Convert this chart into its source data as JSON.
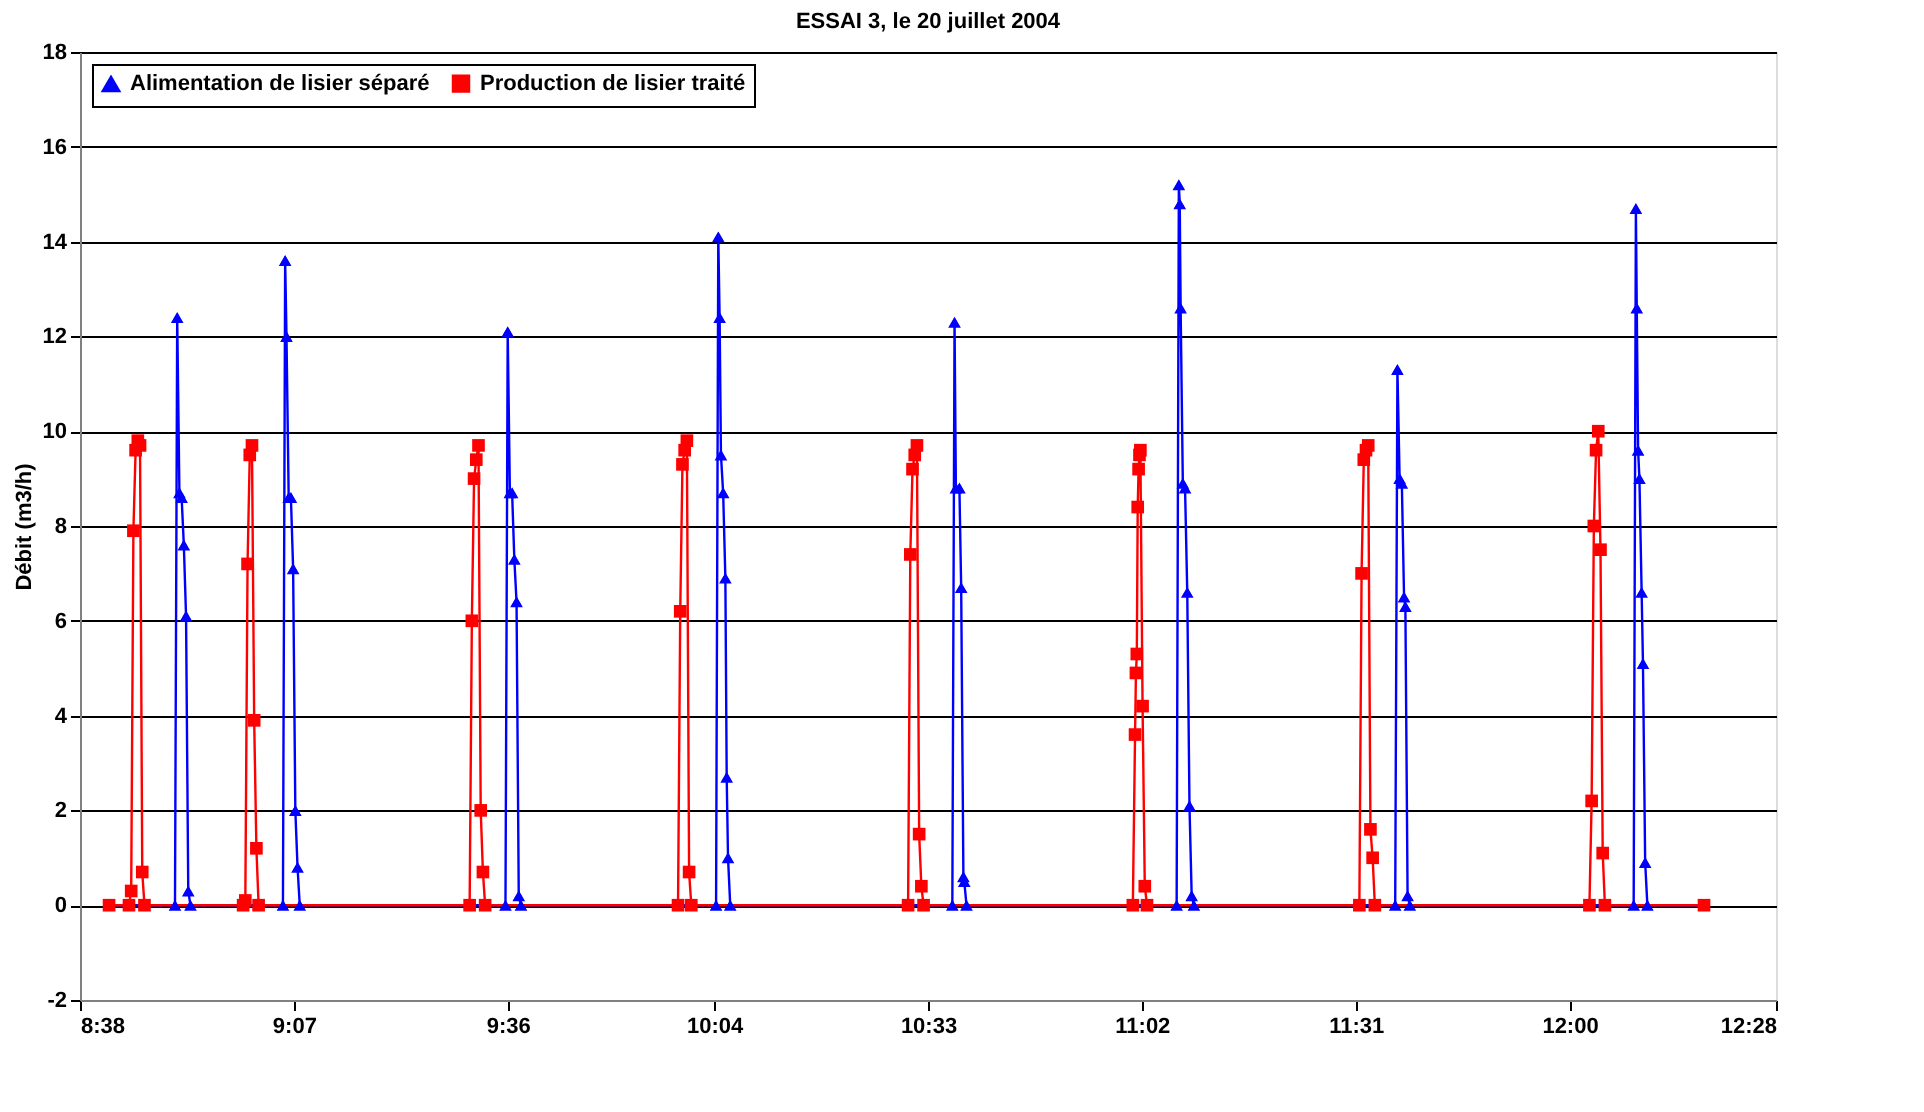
{
  "chart_data": {
    "type": "line",
    "title": "ESSAI 3, le 20 juillet 2004",
    "ylabel": "Débit (m3/h)",
    "xlim": [
      8.6333,
      12.4667
    ],
    "xticks": [
      {
        "value": 8.6333,
        "label": "8:38"
      },
      {
        "value": 9.1167,
        "label": "9:07"
      },
      {
        "value": 9.6,
        "label": "9:36"
      },
      {
        "value": 10.0667,
        "label": "10:04"
      },
      {
        "value": 10.55,
        "label": "10:33"
      },
      {
        "value": 11.0333,
        "label": "11:02"
      },
      {
        "value": 11.5167,
        "label": "11:31"
      },
      {
        "value": 12,
        "label": "12:00"
      },
      {
        "value": 12.4667,
        "label": "12:28"
      }
    ],
    "ylim": [
      -2,
      18
    ],
    "yticks": [
      -2,
      0,
      2,
      4,
      6,
      8,
      10,
      12,
      14,
      16,
      18
    ],
    "grid": "y",
    "legend": "top left",
    "line_style": "solid",
    "series": [
      {
        "name": "Alimentation de lisier séparé",
        "color": "#0000ff",
        "marker": "triangle",
        "x": [
          8.699,
          8.848,
          8.853,
          8.858,
          8.863,
          8.868,
          8.873,
          8.878,
          8.883,
          9.092,
          9.097,
          9.1,
          9.105,
          9.11,
          9.115,
          9.12,
          9.125,
          9.13,
          9.595,
          9.6,
          9.605,
          9.61,
          9.615,
          9.62,
          9.625,
          9.63,
          10.071,
          10.076,
          10.079,
          10.082,
          10.087,
          10.092,
          10.095,
          10.098,
          10.103,
          10.605,
          10.61,
          10.613,
          10.621,
          10.625,
          10.63,
          10.632,
          10.637,
          11.112,
          11.117,
          11.119,
          11.121,
          11.126,
          11.131,
          11.136,
          11.141,
          11.146,
          11.151,
          11.606,
          11.611,
          11.616,
          11.621,
          11.626,
          11.629,
          11.634,
          11.639,
          12.145,
          12.15,
          12.152,
          12.155,
          12.158,
          12.163,
          12.166,
          12.171,
          12.176,
          12.304
        ],
        "values": [
          0,
          0,
          12.4,
          8.7,
          8.6,
          7.6,
          6.1,
          0.3,
          0,
          0,
          13.6,
          12.0,
          8.6,
          8.6,
          7.1,
          2.0,
          0.8,
          0,
          0,
          12.1,
          8.7,
          8.7,
          7.3,
          6.4,
          0.2,
          0,
          0,
          14.1,
          12.4,
          9.5,
          8.7,
          6.9,
          2.7,
          1.0,
          0,
          0,
          12.3,
          8.8,
          8.8,
          6.7,
          0.6,
          0.5,
          0,
          0,
          15.2,
          14.8,
          12.6,
          8.9,
          8.8,
          6.6,
          2.1,
          0.2,
          0,
          0,
          11.3,
          9.0,
          8.9,
          6.5,
          6.3,
          0.2,
          0,
          0,
          14.7,
          12.6,
          9.6,
          9.0,
          6.6,
          5.1,
          0.9,
          0,
          0
        ]
      },
      {
        "name": "Production de lisier traité",
        "color": "#ff0000",
        "marker": "square",
        "x": [
          8.699,
          8.744,
          8.749,
          8.754,
          8.759,
          8.764,
          8.769,
          8.774,
          8.779,
          9.002,
          9.007,
          9.012,
          9.017,
          9.022,
          9.027,
          9.032,
          9.037,
          9.514,
          9.519,
          9.524,
          9.529,
          9.534,
          9.539,
          9.544,
          9.549,
          9.985,
          9.99,
          9.995,
          10.0,
          10.005,
          10.01,
          10.015,
          10.505,
          10.51,
          10.515,
          10.52,
          10.525,
          10.53,
          10.535,
          10.54,
          11.013,
          11.018,
          11.02,
          11.022,
          11.024,
          11.026,
          11.028,
          11.03,
          11.035,
          11.04,
          11.045,
          11.525,
          11.53,
          11.535,
          11.54,
          11.545,
          11.55,
          11.555,
          11.56,
          12.045,
          12.05,
          12.055,
          12.06,
          12.065,
          12.07,
          12.075,
          12.08,
          12.304
        ],
        "values": [
          0,
          0,
          0.3,
          7.9,
          9.6,
          9.8,
          9.7,
          0.7,
          0,
          0,
          0.1,
          7.2,
          9.5,
          9.7,
          3.9,
          1.2,
          0,
          0,
          6.0,
          9.0,
          9.4,
          9.7,
          2.0,
          0.7,
          0,
          0,
          6.2,
          9.3,
          9.6,
          9.8,
          0.7,
          0,
          0,
          7.4,
          9.2,
          9.5,
          9.7,
          1.5,
          0.4,
          0,
          0,
          3.6,
          4.9,
          5.3,
          8.4,
          9.2,
          9.5,
          9.6,
          4.2,
          0.4,
          0,
          0,
          7.0,
          9.4,
          9.6,
          9.7,
          1.6,
          1.0,
          0,
          0,
          2.2,
          8.0,
          9.6,
          10.0,
          7.5,
          1.1,
          0,
          0
        ]
      }
    ]
  }
}
